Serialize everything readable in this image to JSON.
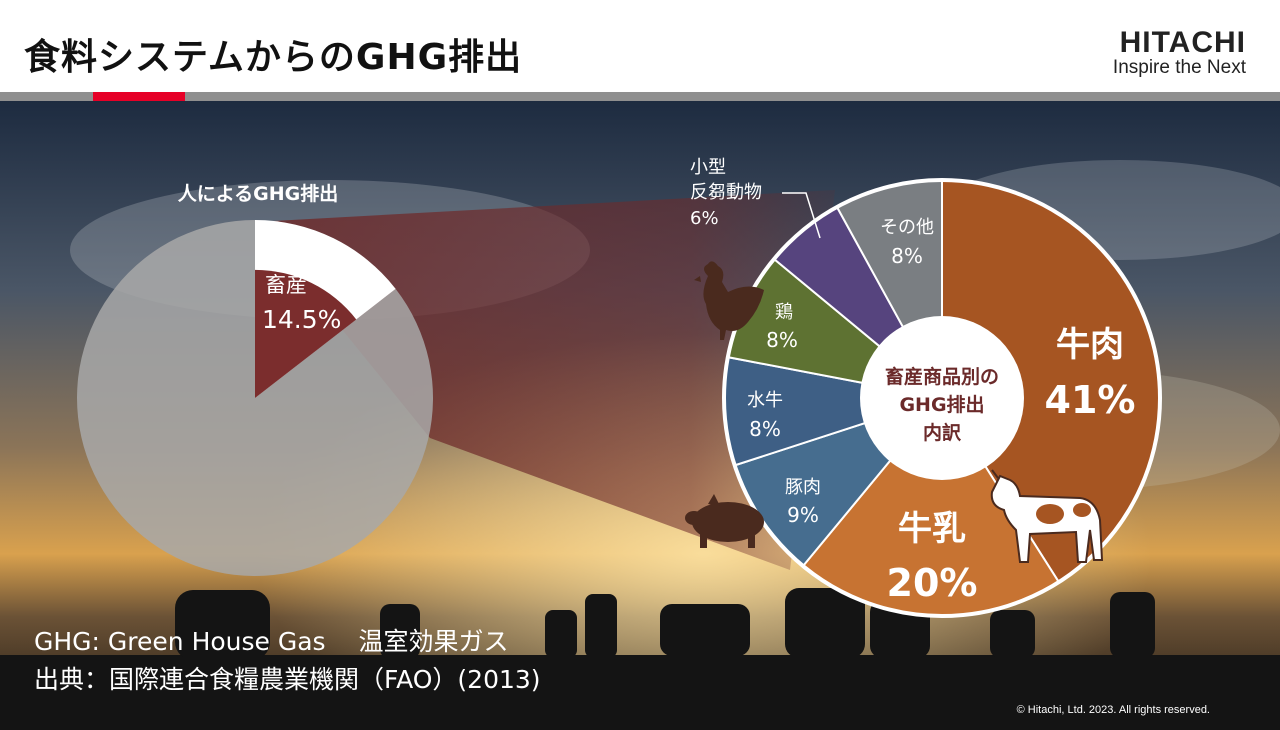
{
  "slide": {
    "title": "食料システムからのGHG排出",
    "logo_brand": "HITACHI",
    "logo_tagline": "Inspire the Next",
    "note_ghg": "GHG: Green House Gas　 温室効果ガス",
    "note_source": "出典：国際連合食糧農業機関（FAO）(2013)",
    "copyright": "© Hitachi, Ltd. 2023. All rights reserved.",
    "colors": {
      "accent": "#e60027",
      "divider": "#8f8f8f"
    }
  },
  "chart_data": [
    {
      "type": "pie",
      "title": "人によるGHG排出",
      "slices": [
        {
          "label": "畜産",
          "value": 14.5,
          "value_label": "14.5%",
          "color": "#7b2d2d"
        },
        {
          "label": "",
          "value": 85.5,
          "value_label": "",
          "color": "#a8a8a8"
        }
      ]
    },
    {
      "type": "pie",
      "title": "畜産商品別のGHG排出内訳",
      "center_label_lines": [
        "畜産商品別の",
        "GHG排出",
        "内訳"
      ],
      "slices": [
        {
          "label": "牛肉",
          "value": 41,
          "value_label": "41%",
          "color": "#a65522",
          "icon": "cow-icon"
        },
        {
          "label": "牛乳",
          "value": 20,
          "value_label": "20%",
          "color": "#c77332"
        },
        {
          "label": "豚肉",
          "value": 9,
          "value_label": "9%",
          "color": "#466d8f",
          "icon": "pig-icon"
        },
        {
          "label": "水牛",
          "value": 8,
          "value_label": "8%",
          "color": "#3e5f85"
        },
        {
          "label": "鶏",
          "value": 8,
          "value_label": "8%",
          "color": "#5e7232",
          "icon": "chicken-icon"
        },
        {
          "label": "小型反芻動物",
          "label_lines": [
            "小型",
            "反芻動物"
          ],
          "value": 6,
          "value_label": "6%",
          "color": "#56447e"
        },
        {
          "label": "その他",
          "value": 8,
          "value_label": "8%",
          "color": "#7a7e82"
        }
      ]
    }
  ]
}
